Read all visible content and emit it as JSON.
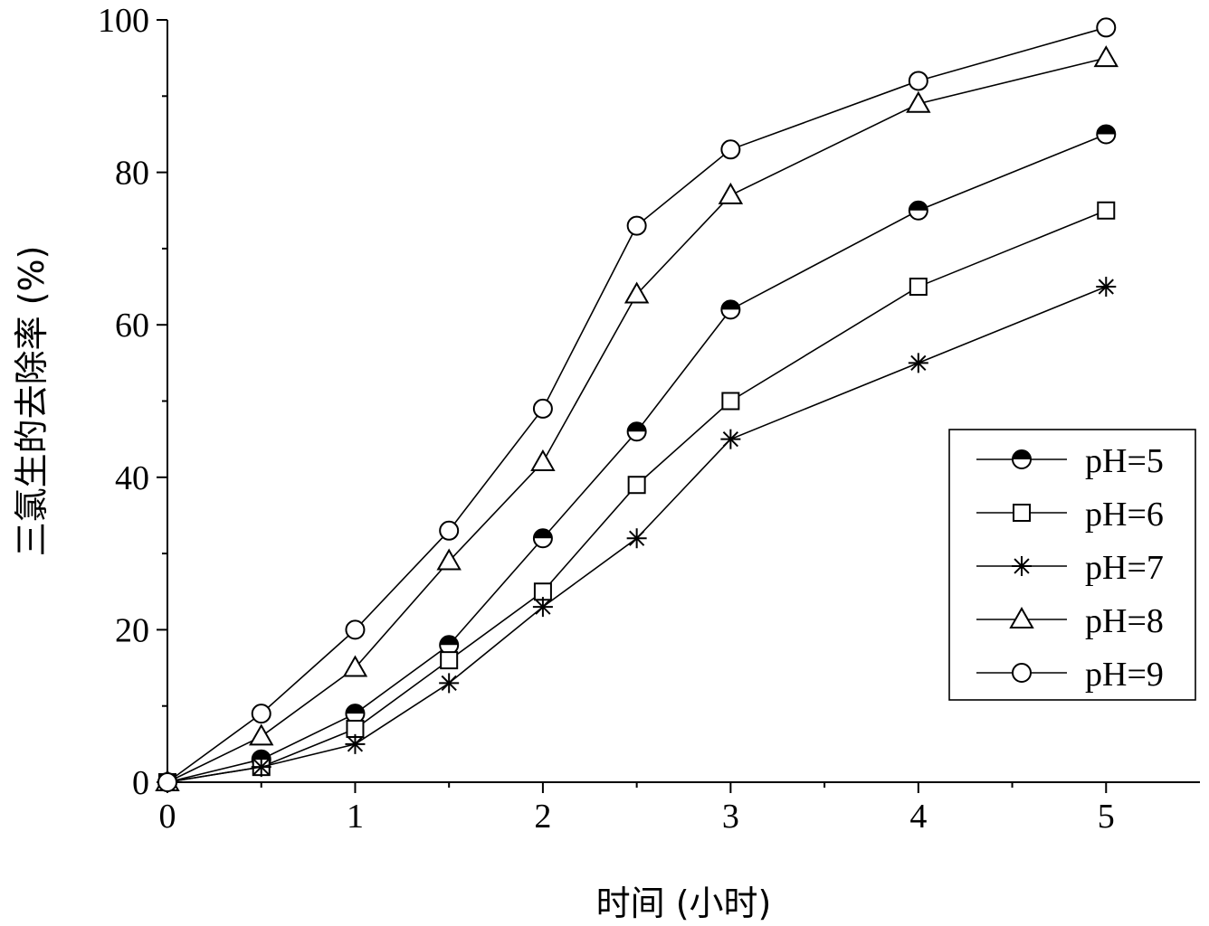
{
  "chart_data": {
    "type": "line",
    "title": "",
    "xlabel": "时间 (小时)",
    "ylabel": "三氯生的去除率 (%)",
    "xlim": [
      0,
      5.5
    ],
    "ylim": [
      0,
      100
    ],
    "x_ticks": [
      0,
      1,
      2,
      3,
      4,
      5
    ],
    "x_tick_labels": [
      "0",
      "1",
      "2",
      "3",
      "4",
      "5"
    ],
    "y_ticks": [
      0,
      20,
      40,
      60,
      80,
      100
    ],
    "y_tick_labels": [
      "0",
      "20",
      "40",
      "60",
      "80",
      "100"
    ],
    "grid": false,
    "legend_position": "bottom-right",
    "x": [
      0,
      0.5,
      1,
      1.5,
      2,
      2.5,
      3,
      4,
      5
    ],
    "series": [
      {
        "name": "pH=5",
        "marker": "half-filled-circle",
        "values": [
          0,
          3,
          9,
          18,
          32,
          46,
          62,
          75,
          85
        ]
      },
      {
        "name": "pH=6",
        "marker": "square",
        "values": [
          0,
          2,
          7,
          16,
          25,
          39,
          50,
          65,
          75
        ]
      },
      {
        "name": "pH=7",
        "marker": "star",
        "values": [
          0,
          2,
          5,
          13,
          23,
          32,
          45,
          55,
          65
        ]
      },
      {
        "name": "pH=8",
        "marker": "triangle",
        "values": [
          0,
          6,
          15,
          29,
          42,
          64,
          77,
          89,
          95
        ]
      },
      {
        "name": "pH=9",
        "marker": "circle",
        "values": [
          0,
          9,
          20,
          33,
          49,
          73,
          83,
          92,
          99
        ]
      }
    ]
  }
}
